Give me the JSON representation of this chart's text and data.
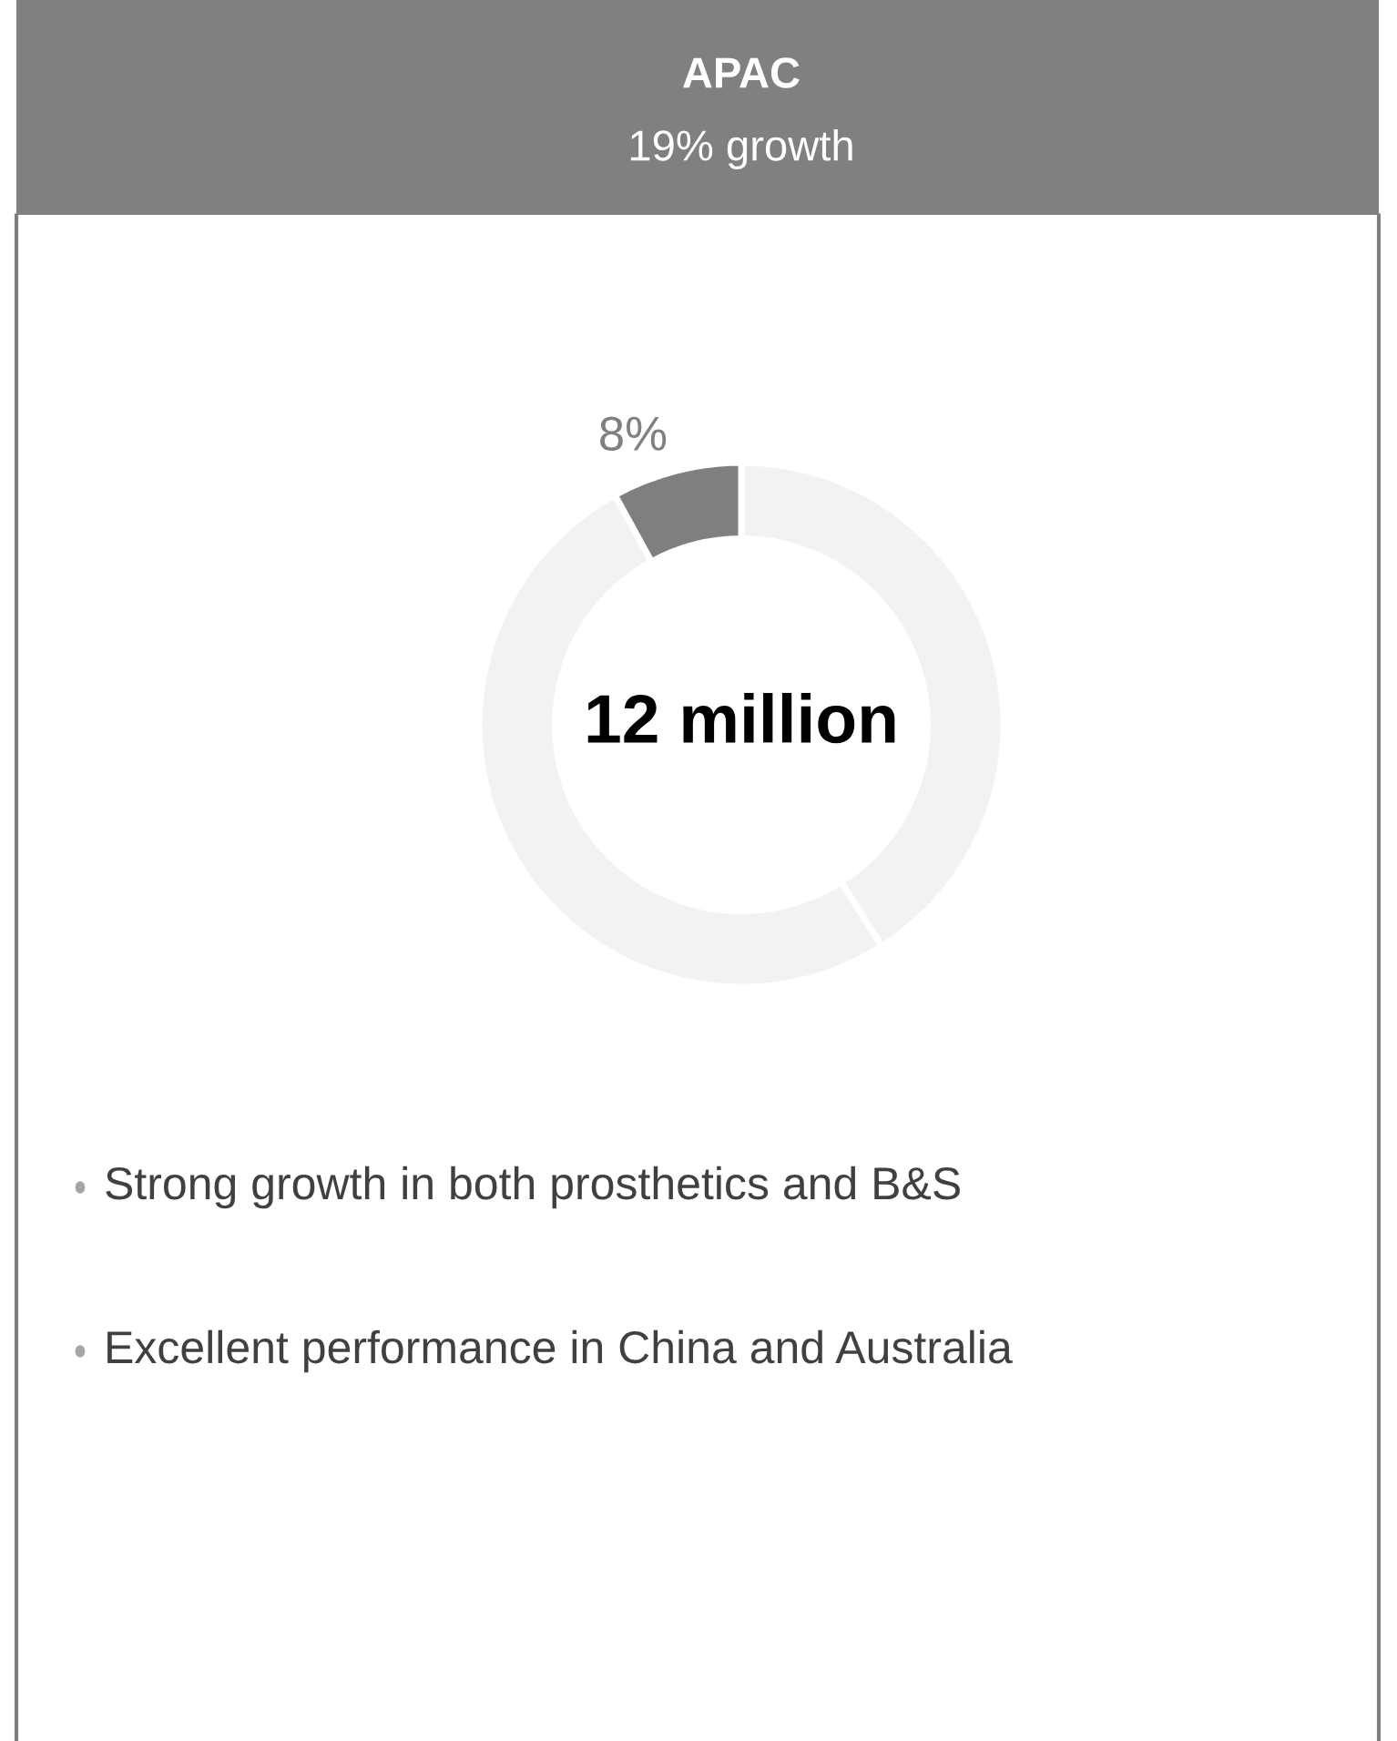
{
  "chart_data": {
    "type": "donut",
    "title": "APAC",
    "subtitle": "19% growth",
    "categories": [
      null,
      null,
      null
    ],
    "values": [
      41,
      51,
      8
    ],
    "colors": [
      "#f2f2f2",
      "#f2f2f2",
      "#7f7f7f"
    ],
    "value_labels": [
      null,
      null,
      "8%"
    ],
    "annotations": [
      "12 million",
      "Strong growth in both prosthetics and B&S",
      "Excellent performance in China and Australia"
    ],
    "legend": false
  }
}
